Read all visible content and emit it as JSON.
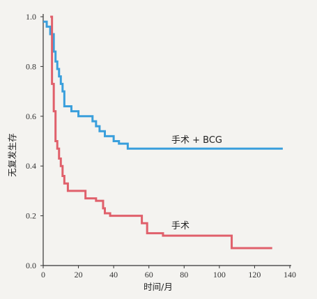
{
  "chart_data": {
    "type": "line",
    "step": true,
    "xlabel": "时间/月",
    "ylabel": "无复发生存",
    "xlim": [
      0,
      140
    ],
    "ylim": [
      0.0,
      1.0
    ],
    "xticks": [
      0,
      20,
      40,
      60,
      80,
      100,
      120,
      140
    ],
    "yticks": [
      0.0,
      0.2,
      0.4,
      0.6,
      0.8,
      1.0
    ],
    "xtick_labels": [
      "0",
      "20",
      "40",
      "60",
      "80",
      "100",
      "120",
      "140"
    ],
    "ytick_labels": [
      "0.0",
      "0.2",
      "0.4",
      "0.6",
      "0.8",
      "1.0"
    ],
    "grid": false,
    "series": [
      {
        "name": "手术 + BCG",
        "color": "#3a9fdc",
        "x": [
          0,
          2,
          4,
          6,
          7,
          8,
          9,
          10,
          11,
          12,
          16,
          20,
          28,
          30,
          32,
          35,
          40,
          43,
          48,
          136
        ],
        "y": [
          0.98,
          0.96,
          0.93,
          0.86,
          0.82,
          0.79,
          0.76,
          0.73,
          0.7,
          0.64,
          0.62,
          0.6,
          0.58,
          0.56,
          0.54,
          0.52,
          0.5,
          0.49,
          0.47,
          0.47
        ]
      },
      {
        "name": "手术",
        "color": "#e0606b",
        "x": [
          4,
          5,
          6,
          7,
          8,
          9,
          10,
          11,
          12,
          14,
          24,
          30,
          34,
          35,
          38,
          56,
          59,
          68,
          107,
          130
        ],
        "y": [
          1.0,
          0.73,
          0.62,
          0.5,
          0.47,
          0.43,
          0.4,
          0.36,
          0.33,
          0.3,
          0.27,
          0.26,
          0.23,
          0.21,
          0.2,
          0.17,
          0.13,
          0.12,
          0.07,
          0.07
        ]
      }
    ]
  }
}
